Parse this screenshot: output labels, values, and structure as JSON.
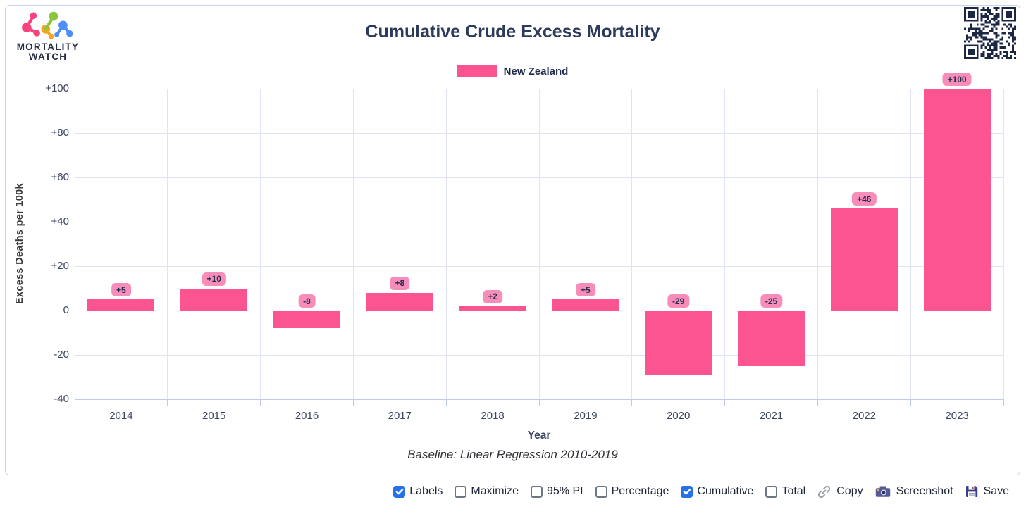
{
  "header": {
    "logo_line1": "MORTALITY",
    "logo_line2": "WATCH",
    "title": "Cumulative Crude Excess Mortality"
  },
  "legend": {
    "label": "New Zealand",
    "color": "#FB5490"
  },
  "chart_data": {
    "type": "bar",
    "title": "Cumulative Crude Excess Mortality",
    "series_name": "New Zealand",
    "categories": [
      "2014",
      "2015",
      "2016",
      "2017",
      "2018",
      "2019",
      "2020",
      "2021",
      "2022",
      "2023"
    ],
    "values": [
      5,
      10,
      -8,
      8,
      2,
      5,
      -29,
      -25,
      46,
      100
    ],
    "bar_labels": [
      "+5",
      "+10",
      "-8",
      "+8",
      "+2",
      "+5",
      "-29",
      "-25",
      "+46",
      "+100"
    ],
    "xlabel": "Year",
    "ylabel": "Excess Deaths per 100k",
    "ylim": [
      -40,
      100
    ],
    "yticks": [
      100,
      80,
      60,
      40,
      20,
      0,
      -20,
      -40
    ],
    "ytick_labels": [
      "+100",
      "+80",
      "+60",
      "+40",
      "+20",
      "0",
      "-20",
      "-40"
    ],
    "grid": true,
    "legend_position": "top",
    "subtitle": "Baseline: Linear Regression 2010-2019"
  },
  "footnote": {
    "baseline": "Baseline: Linear Regression 2010-2019"
  },
  "controls": {
    "checkboxes": [
      {
        "label": "Labels",
        "checked": true
      },
      {
        "label": "Maximize",
        "checked": false
      },
      {
        "label": "95% PI",
        "checked": false
      },
      {
        "label": "Percentage",
        "checked": false
      },
      {
        "label": "Cumulative",
        "checked": true
      },
      {
        "label": "Total",
        "checked": false
      }
    ],
    "buttons": [
      {
        "label": "Copy",
        "icon": "link-icon"
      },
      {
        "label": "Screenshot",
        "icon": "camera-icon"
      },
      {
        "label": "Save",
        "icon": "floppy-icon"
      }
    ]
  },
  "colors": {
    "bar": "#FB5490",
    "bar_label_bg": "#F98DB9",
    "grid": "#DEE3F5",
    "axis": "#BFC9EC",
    "title_text": "#2C3B5B",
    "tick_text": "#3B455F",
    "checkbox_checked": "#2570EB",
    "qr": "#1C2744"
  }
}
